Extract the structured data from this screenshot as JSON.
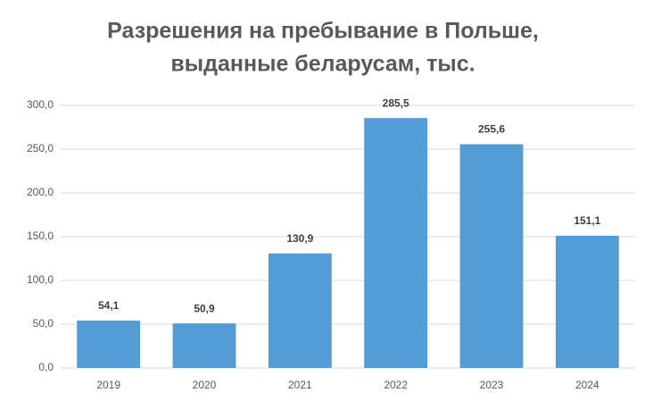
{
  "chart_data": {
    "type": "bar",
    "title": [
      "Разрешения на пребывание в Польше,",
      "выданные беларусам, тыс."
    ],
    "categories": [
      "2019",
      "2020",
      "2021",
      "2022",
      "2023",
      "2024"
    ],
    "values": [
      54.1,
      50.9,
      130.9,
      285.5,
      255.6,
      151.1
    ],
    "value_labels": [
      "54,1",
      "50,9",
      "130,9",
      "285,5",
      "255,6",
      "151,1"
    ],
    "color": "#549cd6",
    "ylim": [
      0,
      300
    ],
    "yticks": [
      {
        "value": 0,
        "label": "0,0"
      },
      {
        "value": 50,
        "label": "50,0"
      },
      {
        "value": 100,
        "label": "100,0"
      },
      {
        "value": 150,
        "label": "150,0"
      },
      {
        "value": 200,
        "label": "200,0"
      },
      {
        "value": 250,
        "label": "250,0"
      },
      {
        "value": 300,
        "label": "300,0"
      }
    ],
    "grid": true
  }
}
